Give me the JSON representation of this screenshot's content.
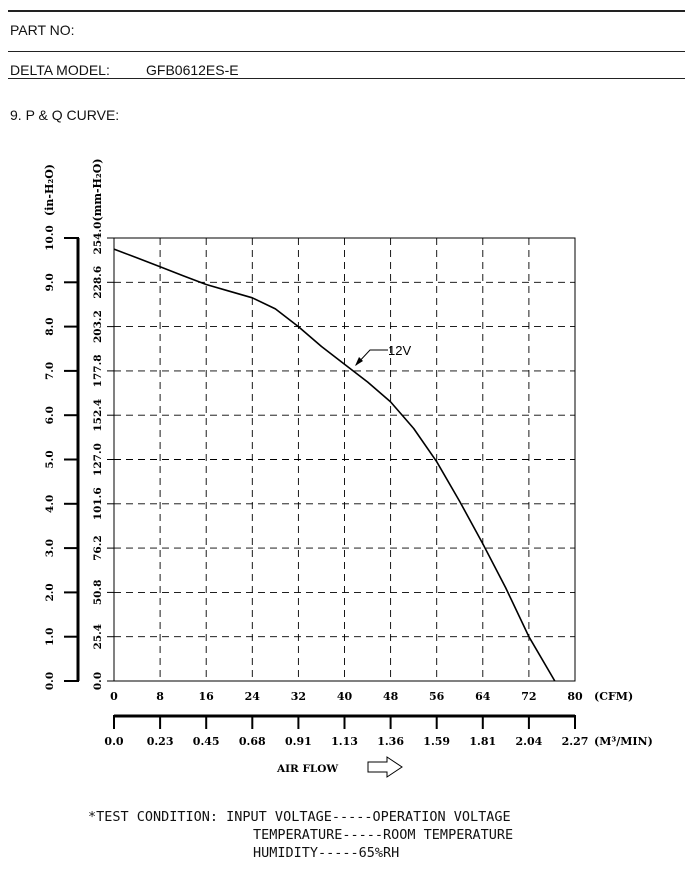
{
  "header": {
    "part_no_label": "PART NO:",
    "model_label": "DELTA MODEL:",
    "model_value": "GFB0612ES-E",
    "section_title": "9. P & Q CURVE:"
  },
  "chart_data": {
    "type": "line",
    "y_left_unit": "(in-H₂O)",
    "y_inner_unit": "(mm-H₂O)",
    "y_left_ticks": [
      "0.0",
      "1.0",
      "2.0",
      "3.0",
      "4.0",
      "5.0",
      "6.0",
      "7.0",
      "8.0",
      "9.0",
      "10.0"
    ],
    "y_inner_ticks": [
      "0.0",
      "25.4",
      "50.8",
      "76.2",
      "101.6",
      "127.0",
      "152.4",
      "177.8",
      "203.2",
      "228.6",
      "254.0"
    ],
    "x_top_ticks": [
      "0",
      "8",
      "16",
      "24",
      "32",
      "40",
      "48",
      "56",
      "64",
      "72",
      "80"
    ],
    "x_top_unit": "(CFM)",
    "x_bottom_ticks": [
      "0.0",
      "0.23",
      "0.45",
      "0.68",
      "0.91",
      "1.13",
      "1.36",
      "1.59",
      "1.81",
      "2.04",
      "2.27"
    ],
    "x_bottom_unit": "(M³/MIN)",
    "xlabel": "AIR FLOW",
    "xlim": [
      0,
      80
    ],
    "ylim": [
      0,
      10
    ],
    "grid": true,
    "series": [
      {
        "name": "12V",
        "x": [
          0,
          4,
          8,
          12,
          16,
          20,
          24,
          28,
          32,
          36,
          40,
          44,
          48,
          52,
          56,
          60,
          64,
          68,
          72,
          76.5
        ],
        "y": [
          9.75,
          9.55,
          9.35,
          9.15,
          8.95,
          8.8,
          8.65,
          8.4,
          8.0,
          7.55,
          7.15,
          6.75,
          6.3,
          5.7,
          4.95,
          4.05,
          3.1,
          2.1,
          1.0,
          0.0
        ]
      }
    ],
    "annotation": "12V"
  },
  "test_condition": {
    "line1": "*TEST CONDITION: INPUT VOLTAGE-----OPERATION VOLTAGE",
    "line2": "TEMPERATURE-----ROOM TEMPERATURE",
    "line3": "HUMIDITY-----65%RH"
  }
}
